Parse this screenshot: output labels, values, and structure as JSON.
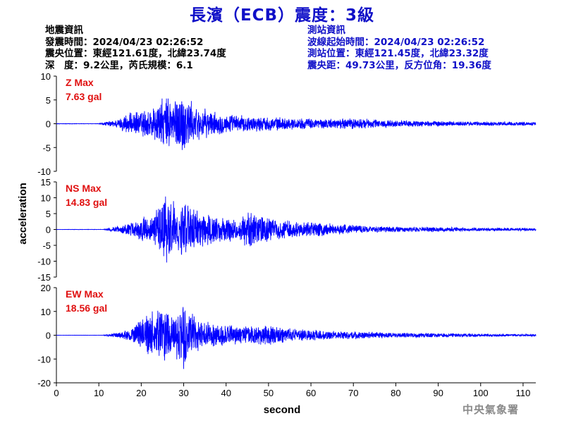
{
  "title": "長濱（ECB）震度：3級",
  "earthquake_info": {
    "heading": "地震資訊",
    "lines": [
      "發震時間：2024/04/23 02:26:52",
      "震央位置：東經121.61度，北緯23.74度",
      "深　度：9.2公里，芮氏規模：6.1"
    ]
  },
  "station_info": {
    "heading": "測站資訊",
    "lines": [
      "波線起始時間：2024/04/23 02:26:52",
      "測站位置：東經121.45度，北緯23.32度",
      "震央距：49.73公里，反方位角：19.36度"
    ]
  },
  "credit": "中央氣象署",
  "colors": {
    "title": "#1010c8",
    "trace": "#0000ff",
    "max_label": "#e01010",
    "axis": "#000000"
  },
  "chart_data": {
    "type": "line",
    "xlabel": "second",
    "ylabel": "acceleration",
    "xlim": [
      0,
      113
    ],
    "xticks": [
      0,
      10,
      20,
      30,
      40,
      50,
      60,
      70,
      80,
      90,
      100,
      110
    ],
    "panels": [
      {
        "name": "Z",
        "max_label": "Z Max",
        "max_value": "7.63 gal",
        "ylim": [
          -10,
          10
        ],
        "yticks": [
          -10,
          -5,
          0,
          5,
          10
        ],
        "envelope": [
          [
            0,
            0.05
          ],
          [
            10,
            0.05
          ],
          [
            11.5,
            0.4
          ],
          [
            13,
            0.7
          ],
          [
            15,
            1.2
          ],
          [
            16,
            2.2
          ],
          [
            18,
            2.5
          ],
          [
            20,
            3.0
          ],
          [
            22,
            3.5
          ],
          [
            24,
            5.0
          ],
          [
            26,
            6.0
          ],
          [
            27,
            6.5
          ],
          [
            28,
            6.0
          ],
          [
            30,
            7.5
          ],
          [
            31,
            6.5
          ],
          [
            32,
            4.5
          ],
          [
            34,
            3.5
          ],
          [
            36,
            3.0
          ],
          [
            38,
            2.5
          ],
          [
            40,
            2.2
          ],
          [
            45,
            1.8
          ],
          [
            50,
            1.6
          ],
          [
            55,
            1.3
          ],
          [
            60,
            1.2
          ],
          [
            65,
            1.1
          ],
          [
            70,
            1.3
          ],
          [
            75,
            1.0
          ],
          [
            80,
            0.8
          ],
          [
            90,
            0.6
          ],
          [
            100,
            0.5
          ],
          [
            110,
            0.45
          ],
          [
            113,
            0.4
          ]
        ]
      },
      {
        "name": "NS",
        "max_label": "NS Max",
        "max_value": "14.83 gal",
        "ylim": [
          -15,
          15
        ],
        "yticks": [
          -15,
          -10,
          -5,
          0,
          5,
          10,
          15
        ],
        "envelope": [
          [
            0,
            0.05
          ],
          [
            11,
            0.05
          ],
          [
            13,
            0.6
          ],
          [
            15,
            1.2
          ],
          [
            18,
            2.5
          ],
          [
            20,
            4.0
          ],
          [
            22,
            5.0
          ],
          [
            24,
            8.0
          ],
          [
            26,
            12.5
          ],
          [
            27,
            11.0
          ],
          [
            28,
            9.0
          ],
          [
            30,
            9.5
          ],
          [
            32,
            7.0
          ],
          [
            35,
            5.5
          ],
          [
            38,
            5.0
          ],
          [
            40,
            4.5
          ],
          [
            43,
            3.5
          ],
          [
            46,
            7.5
          ],
          [
            48,
            5.0
          ],
          [
            50,
            4.0
          ],
          [
            55,
            3.0
          ],
          [
            60,
            2.5
          ],
          [
            65,
            2.0
          ],
          [
            70,
            1.5
          ],
          [
            75,
            1.2
          ],
          [
            80,
            1.0
          ],
          [
            90,
            0.8
          ],
          [
            100,
            0.6
          ],
          [
            110,
            0.5
          ],
          [
            113,
            0.5
          ]
        ]
      },
      {
        "name": "EW",
        "max_label": "EW Max",
        "max_value": "18.56 gal",
        "ylim": [
          -20,
          20
        ],
        "yticks": [
          -20,
          -10,
          0,
          10,
          20
        ],
        "envelope": [
          [
            0,
            0.05
          ],
          [
            11,
            0.05
          ],
          [
            13,
            0.8
          ],
          [
            15,
            1.5
          ],
          [
            17,
            2.5
          ],
          [
            18,
            3.5
          ],
          [
            20,
            7.0
          ],
          [
            22,
            10.0
          ],
          [
            24,
            11.0
          ],
          [
            26,
            12.0
          ],
          [
            28,
            10.0
          ],
          [
            30,
            16.0
          ],
          [
            31,
            12.0
          ],
          [
            33,
            8.0
          ],
          [
            35,
            6.0
          ],
          [
            37,
            5.5
          ],
          [
            40,
            5.0
          ],
          [
            43,
            4.0
          ],
          [
            46,
            4.0
          ],
          [
            50,
            4.5
          ],
          [
            55,
            3.0
          ],
          [
            60,
            2.5
          ],
          [
            65,
            2.0
          ],
          [
            70,
            1.8
          ],
          [
            75,
            1.5
          ],
          [
            80,
            1.2
          ],
          [
            90,
            0.9
          ],
          [
            100,
            0.7
          ],
          [
            110,
            0.5
          ],
          [
            113,
            0.5
          ]
        ]
      }
    ]
  }
}
